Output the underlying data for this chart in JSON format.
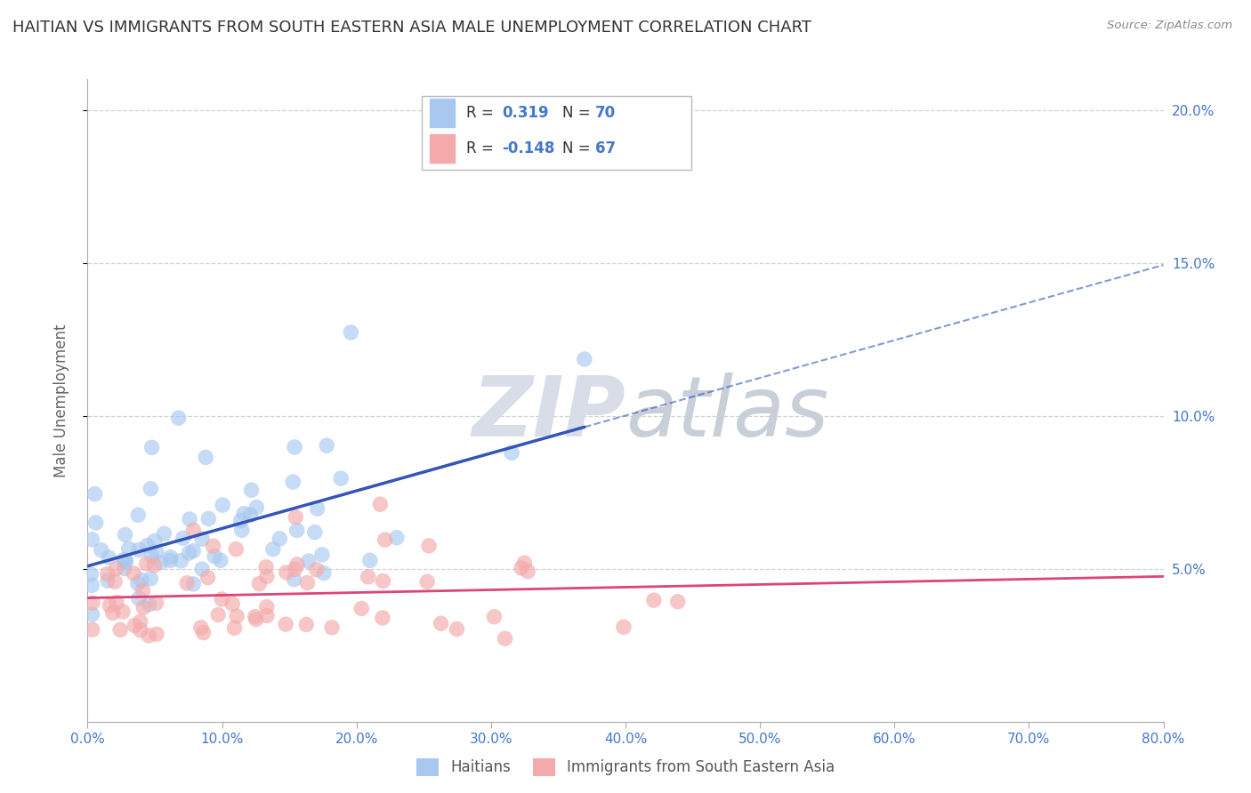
{
  "title": "HAITIAN VS IMMIGRANTS FROM SOUTH EASTERN ASIA MALE UNEMPLOYMENT CORRELATION CHART",
  "source": "Source: ZipAtlas.com",
  "ylabel": "Male Unemployment",
  "xlim": [
    0.0,
    0.8
  ],
  "ylim": [
    0.0,
    0.21
  ],
  "yticks": [
    0.05,
    0.1,
    0.15,
    0.2
  ],
  "xticks": [
    0.0,
    0.1,
    0.2,
    0.3,
    0.4,
    0.5,
    0.6,
    0.7,
    0.8
  ],
  "series1_label": "Haitians",
  "series1_R": "0.319",
  "series1_N": "70",
  "series1_color": "#a8c8f0",
  "series1_line_color": "#3355bb",
  "series2_label": "Immigrants from South Eastern Asia",
  "series2_R": "-0.148",
  "series2_N": "67",
  "series2_color": "#f4aaaa",
  "series2_line_color": "#dd4477",
  "watermark_color": "#d8dde8",
  "background_color": "#ffffff",
  "grid_color": "#cccccc",
  "title_color": "#333333",
  "axis_label_color": "#666666",
  "tick_label_color": "#4477cc",
  "legend_text_color": "#333333",
  "legend_val_color": "#4477cc"
}
